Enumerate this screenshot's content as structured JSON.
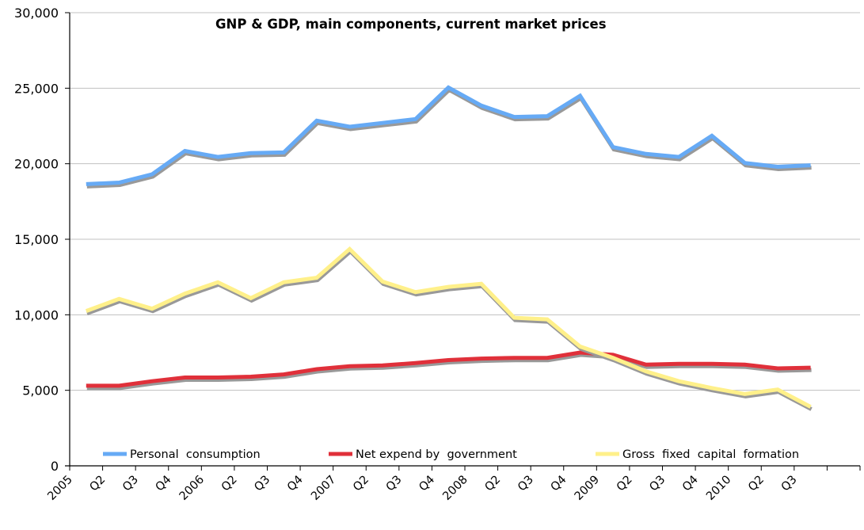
{
  "chart_data": {
    "type": "line",
    "title": "GNP & GDP, main components, current market prices",
    "xlabel": "",
    "ylabel": "",
    "ylim": [
      0,
      30000
    ],
    "yticks": [
      0,
      5000,
      10000,
      15000,
      20000,
      25000,
      30000
    ],
    "ytick_labels": [
      "0",
      "5,000",
      "10,000",
      "15,000",
      "20,000",
      "25,000",
      "30,000"
    ],
    "grid": true,
    "legend_position": "bottom-inside",
    "categories": [
      "2005",
      "Q2",
      "Q3",
      "Q4",
      "2006",
      "Q2",
      "Q3",
      "Q4",
      "2007",
      "Q2",
      "Q3",
      "Q4",
      "2008",
      "Q2",
      "Q3",
      "Q4",
      "2009",
      "Q2",
      "Q3",
      "Q4",
      "2010",
      "Q2",
      "Q3",
      ""
    ],
    "series": [
      {
        "name": "Personal  consumption",
        "color": "#66aaf5",
        "values": [
          18650,
          18750,
          19300,
          20850,
          20450,
          20700,
          20750,
          22850,
          22450,
          22700,
          22950,
          25050,
          23850,
          23100,
          23150,
          24500,
          21100,
          20650,
          20450,
          21850,
          20050,
          19800,
          19900
        ]
      },
      {
        "name": "Net expend by  government",
        "color": "#e0303a",
        "values": [
          5300,
          5300,
          5600,
          5850,
          5850,
          5900,
          6050,
          6400,
          6600,
          6650,
          6800,
          7000,
          7100,
          7150,
          7150,
          7500,
          7350,
          6700,
          6750,
          6750,
          6700,
          6450,
          6500
        ]
      },
      {
        "name": "Gross  fixed  capital  formation",
        "color": "#fff08a",
        "values": [
          10250,
          11050,
          10400,
          11400,
          12150,
          11100,
          12150,
          12450,
          14350,
          12200,
          11500,
          11850,
          12050,
          9800,
          9700,
          7900,
          7150,
          6250,
          5600,
          5150,
          4750,
          5050,
          3900
        ]
      }
    ],
    "shadow_color": "#999999",
    "gridline_color": "#c0c0c0"
  }
}
